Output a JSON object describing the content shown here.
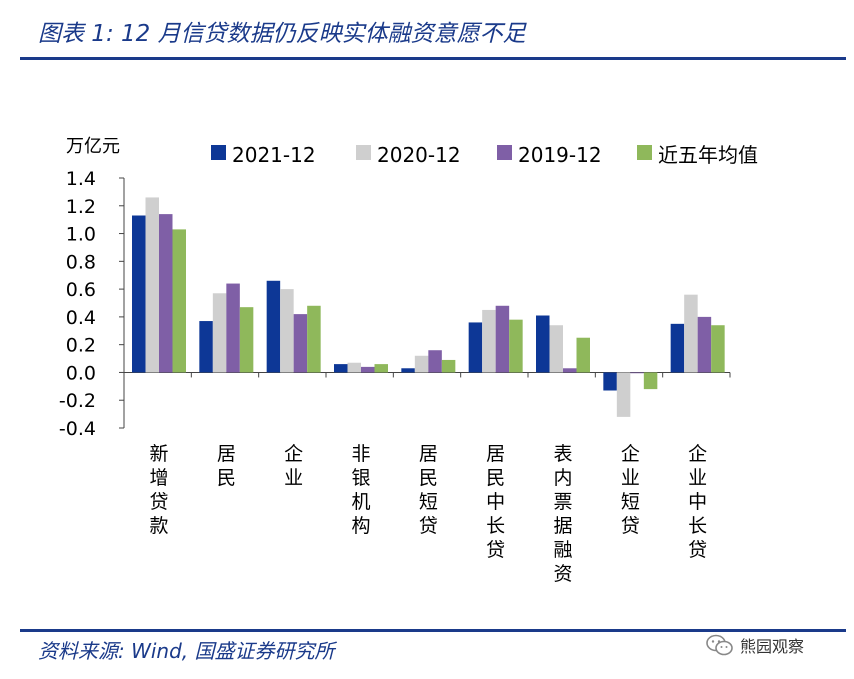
{
  "figure": {
    "title": "图表 1:  12 月信贷数据仍反映实体融资意愿不足",
    "source": "资料来源:  Wind,  国盛证券研究所",
    "watermark": "熊园观察",
    "watermark_icon": "wechat-icon"
  },
  "chart_data": {
    "type": "bar",
    "ylabel": "万亿元",
    "ylim": [
      -0.4,
      1.4
    ],
    "yticks": [
      "1.4",
      "1.2",
      "1.0",
      "0.8",
      "0.6",
      "0.4",
      "0.2",
      "0.0",
      "-0.2",
      "-0.4"
    ],
    "legend_position": "top",
    "grid": false,
    "categories": [
      "新增贷款",
      "居民",
      "企业",
      "非银机构",
      "居民短贷",
      "居民中长贷",
      "表内票据融资",
      "企业短贷",
      "企业中长贷"
    ],
    "series": [
      {
        "name": "2021-12",
        "color": "#0d3796",
        "values": [
          1.13,
          0.37,
          0.66,
          0.06,
          0.03,
          0.36,
          0.41,
          -0.13,
          0.35
        ]
      },
      {
        "name": "2020-12",
        "color": "#cfcfcf",
        "values": [
          1.26,
          0.57,
          0.6,
          0.07,
          0.12,
          0.45,
          0.34,
          -0.32,
          0.56
        ]
      },
      {
        "name": "2019-12",
        "color": "#7f5fa6",
        "values": [
          1.14,
          0.64,
          0.42,
          0.04,
          0.16,
          0.48,
          0.03,
          0.0,
          0.4
        ]
      },
      {
        "name": "近五年均值",
        "color": "#8fb85b",
        "values": [
          1.03,
          0.47,
          0.48,
          0.06,
          0.09,
          0.38,
          0.25,
          -0.12,
          0.34
        ]
      }
    ]
  }
}
